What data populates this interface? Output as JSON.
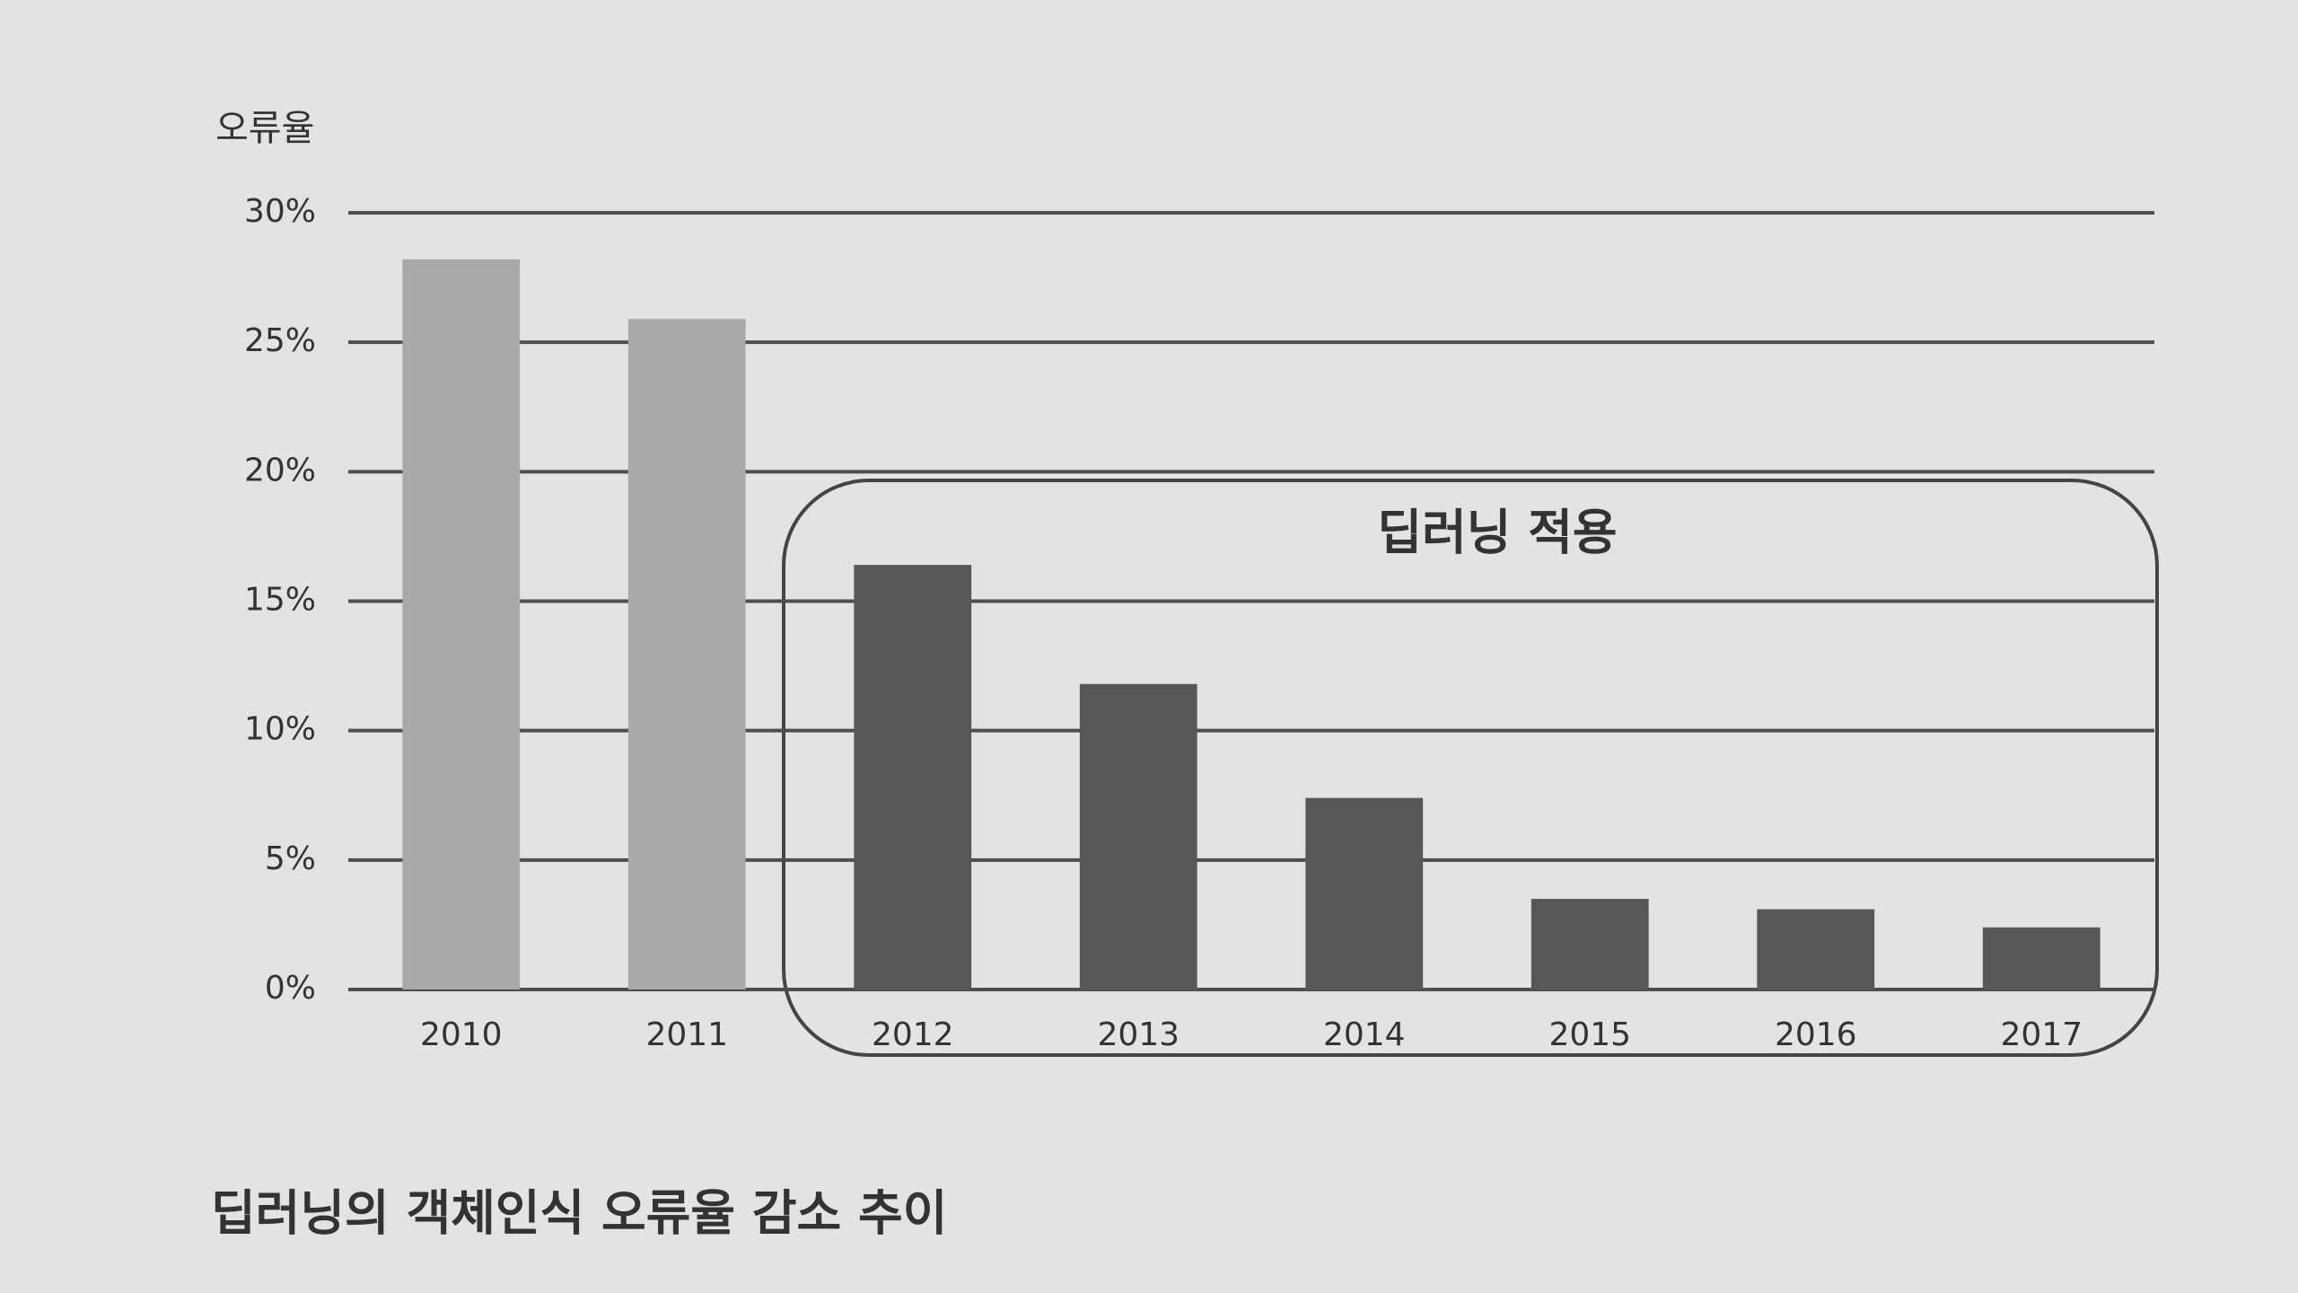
{
  "chart_data": {
    "type": "bar",
    "title": "딥러닝의 객체인식 오류율 감소 추이",
    "y_label": "오류율",
    "annotation": "딥러닝 적용",
    "categories": [
      "2010",
      "2011",
      "2012",
      "2013",
      "2014",
      "2015",
      "2016",
      "2017"
    ],
    "values": [
      28.2,
      25.9,
      16.4,
      11.8,
      7.4,
      3.5,
      3.1,
      2.4
    ],
    "colors": [
      "#a9a9a9",
      "#a9a9a9",
      "#575757",
      "#575757",
      "#575757",
      "#575757",
      "#575757",
      "#575757"
    ],
    "ylim": [
      0,
      30
    ],
    "yticks": [
      {
        "value": 0,
        "label": "0%"
      },
      {
        "value": 5,
        "label": "5%"
      },
      {
        "value": 10,
        "label": "10%"
      },
      {
        "value": 15,
        "label": "15%"
      },
      {
        "value": 20,
        "label": "20%"
      },
      {
        "value": 25,
        "label": "25%"
      },
      {
        "value": 30,
        "label": "30%"
      }
    ],
    "grid": true
  }
}
